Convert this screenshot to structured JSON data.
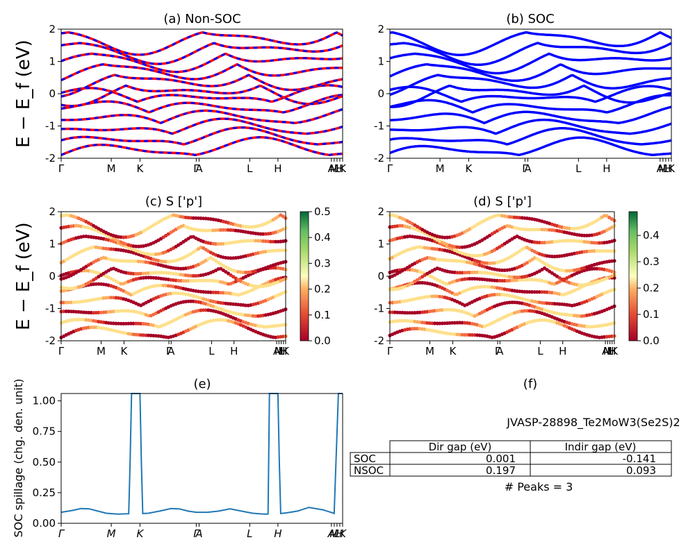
{
  "panels": {
    "a": {
      "title": "(a) Non-SOC",
      "ylabel": "E − E_f (eV)",
      "ylim": [
        -2,
        2
      ],
      "yticks": [
        "-2",
        "-1",
        "0",
        "1",
        "2"
      ],
      "xticks": [
        "Γ",
        "M",
        "K",
        "Γ",
        "A",
        "L",
        "H",
        "A",
        "M",
        "L",
        "H",
        "K"
      ]
    },
    "b": {
      "title": "(b) SOC",
      "ylim": [
        -2,
        2
      ],
      "yticks": [
        "-2",
        "-1",
        "0",
        "1",
        "2"
      ],
      "xticks": [
        "Γ",
        "M",
        "K",
        "Γ",
        "A",
        "L",
        "H",
        "A",
        "M",
        "L",
        "H",
        "K"
      ]
    },
    "c": {
      "title": "(c)  S ['p']",
      "ylabel": "E − E_f (eV)",
      "ylim": [
        -2,
        2
      ],
      "yticks": [
        "-2",
        "-1",
        "0",
        "1",
        "2"
      ],
      "xticks": [
        "Γ",
        "M",
        "K",
        "Γ",
        "A",
        "L",
        "H",
        "A",
        "M",
        "L",
        "H",
        "K"
      ],
      "colorbar_ticks": [
        "0.0",
        "0.1",
        "0.2",
        "0.3",
        "0.4",
        "0.5"
      ]
    },
    "d": {
      "title": "(d) S ['p']",
      "ylim": [
        -2,
        2
      ],
      "yticks": [
        "-2",
        "-1",
        "0",
        "1",
        "2"
      ],
      "xticks": [
        "Γ",
        "M",
        "K",
        "Γ",
        "A",
        "L",
        "H",
        "A",
        "M",
        "L",
        "H",
        "K"
      ],
      "colorbar_ticks": [
        "0.0",
        "0.1",
        "0.2",
        "0.3",
        "0.4"
      ]
    },
    "e": {
      "title": "(e)",
      "ylabel": "SOC spillage (chg. den. unit)",
      "yticks": [
        "0.00",
        "0.25",
        "0.50",
        "0.75",
        "1.00"
      ],
      "xticks": [
        "Γ",
        "M",
        "K",
        "Γ",
        "A",
        "L",
        "H",
        "A",
        "M",
        "L",
        "H",
        "K"
      ]
    },
    "f": {
      "title": "(f)",
      "material": "JVASP-28898_Te2MoW3(Se2S)2",
      "peaks": "# Peaks = 3",
      "table": {
        "headers": [
          "",
          "Dir gap (eV)",
          "Indir gap (eV)"
        ],
        "rows": [
          [
            "SOC",
            "0.001",
            "-0.141"
          ],
          [
            "NSOC",
            "0.197",
            "0.093"
          ]
        ]
      }
    }
  },
  "chart_data": [
    {
      "type": "line",
      "title": "(a) Non-SOC",
      "ylabel": "E − E_f (eV)",
      "ylim": [
        -2,
        2
      ],
      "series": [
        {
          "color": "#ff0000"
        },
        {
          "color": "#0000ff"
        }
      ],
      "kpath": [
        "Γ",
        "M",
        "K",
        "Γ",
        "A",
        "L",
        "H",
        "A",
        "M",
        "L",
        "H",
        "K"
      ],
      "kpos": [
        0,
        0.178,
        0.28,
        0.48,
        0.49,
        0.67,
        0.77,
        0.96,
        0.97,
        0.98,
        0.99,
        1.0
      ]
    },
    {
      "type": "line",
      "title": "(b) SOC",
      "ylim": [
        -2,
        2
      ],
      "series": [
        {
          "color": "#0000ff"
        }
      ],
      "kpath": [
        "Γ",
        "M",
        "K",
        "Γ",
        "A",
        "L",
        "H",
        "A",
        "M",
        "L",
        "H",
        "K"
      ]
    },
    {
      "type": "scatter",
      "title": "(c)  S ['p']",
      "ylim": [
        -2,
        2
      ],
      "colorbar_range": [
        0,
        0.5
      ],
      "colormap": "RdYlGn"
    },
    {
      "type": "scatter",
      "title": "(d) S ['p']",
      "ylim": [
        -2,
        2
      ],
      "colorbar_range": [
        0,
        0.49
      ],
      "colormap": "RdYlGn"
    },
    {
      "type": "line",
      "title": "(e)",
      "ylabel": "SOC spillage (chg. den. unit)",
      "ylim": [
        0,
        1.06
      ],
      "x": [
        0,
        0.04,
        0.07,
        0.1,
        0.13,
        0.16,
        0.2,
        0.24,
        0.245,
        0.25,
        0.28,
        0.285,
        0.29,
        0.31,
        0.35,
        0.39,
        0.42,
        0.45,
        0.48,
        0.52,
        0.56,
        0.6,
        0.64,
        0.68,
        0.72,
        0.735,
        0.74,
        0.77,
        0.775,
        0.78,
        0.8,
        0.84,
        0.88,
        0.93,
        0.965,
        0.97,
        0.985,
        1.0
      ],
      "y": [
        0.09,
        0.105,
        0.12,
        0.118,
        0.1,
        0.082,
        0.075,
        0.078,
        0.5,
        1.06,
        1.06,
        0.5,
        0.08,
        0.082,
        0.1,
        0.12,
        0.118,
        0.1,
        0.09,
        0.09,
        0.1,
        0.118,
        0.1,
        0.082,
        0.075,
        0.076,
        1.06,
        1.06,
        0.5,
        0.08,
        0.085,
        0.1,
        0.13,
        0.11,
        0.085,
        0.08,
        1.06,
        1.06
      ]
    }
  ]
}
